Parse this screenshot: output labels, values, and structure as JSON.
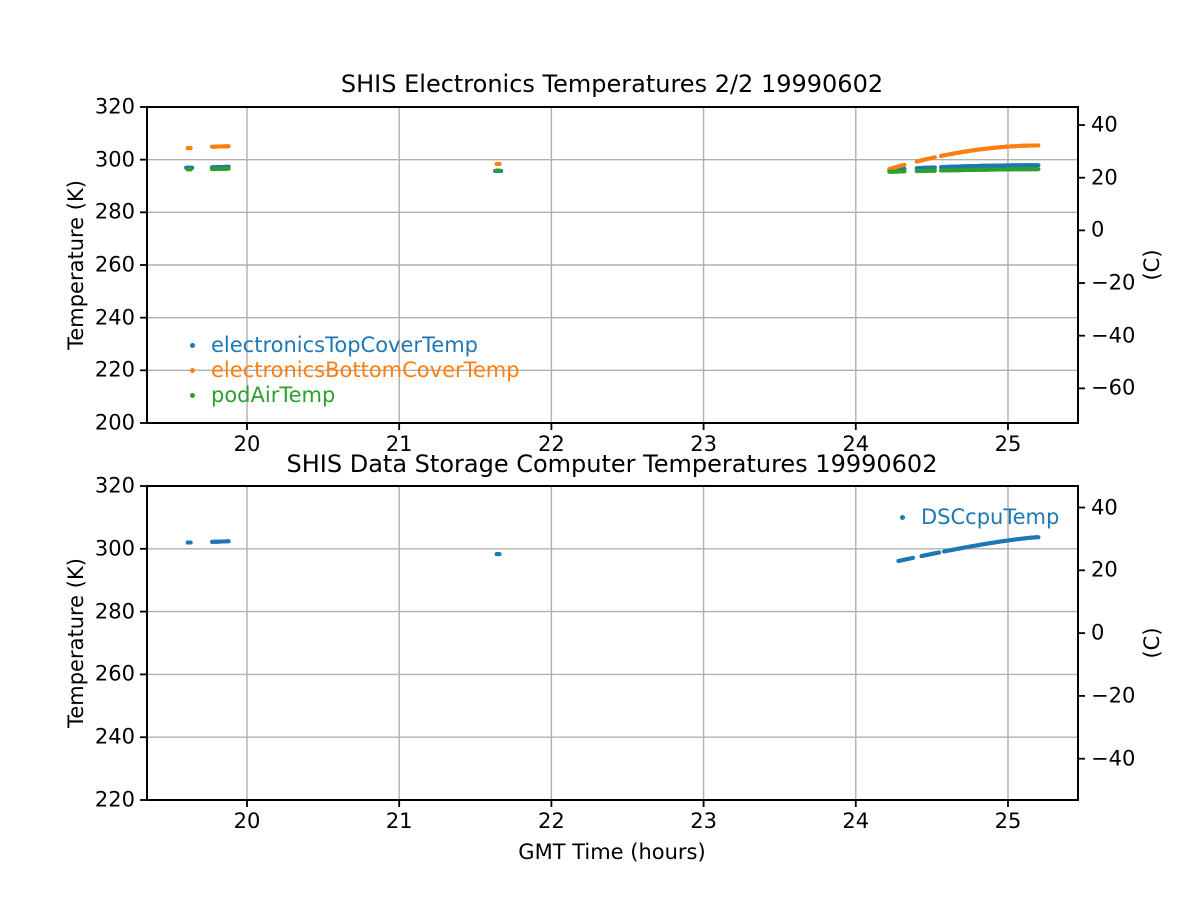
{
  "figure": {
    "background": "#ffffff"
  },
  "colors": {
    "grid": "#b0b0b0",
    "spine": "#000000",
    "text": "#000000"
  },
  "xaxis": {
    "label": "GMT Time (hours)",
    "tick_labels": [
      "20",
      "21",
      "22",
      "23",
      "24",
      "25"
    ],
    "tick_values": [
      20,
      21,
      22,
      23,
      24,
      25
    ],
    "lim": [
      19.343,
      25.46
    ]
  },
  "chart_data": [
    {
      "type": "scatter",
      "title": "SHIS Electronics Temperatures 2/2 19990602",
      "ylabel": "Temperature (K)",
      "y2label": "(C)",
      "xlabel": "",
      "ylim": [
        200,
        320
      ],
      "yticks": [
        200,
        220,
        240,
        260,
        280,
        300,
        320
      ],
      "y2ticks": [
        40,
        20,
        0,
        -20,
        -40,
        -60
      ],
      "y2_to_K_offset": 273.15,
      "grid": true,
      "legend_position": "lower left",
      "series": [
        {
          "name": "electronicsTopCoverTemp",
          "color": "#1f77b4",
          "runs": [
            {
              "x": [
                19.6,
                19.64
              ],
              "y": [
                296.9,
                296.9
              ]
            },
            {
              "x": [
                19.77,
                19.88
              ],
              "y": [
                297.1,
                297.3
              ]
            },
            {
              "x": [
                21.63,
                21.67
              ],
              "y": [
                295.7,
                295.7
              ]
            },
            {
              "x": [
                24.22,
                25.2
              ],
              "y": [
                296.2,
                297.9
              ],
              "p": 2.0,
              "gaps": [
                [
                  24.32,
                  24.4
                ],
                [
                  24.52,
                  24.56
                ]
              ]
            }
          ]
        },
        {
          "name": "electronicsBottomCoverTemp",
          "color": "#ff7f0e",
          "runs": [
            {
              "x": [
                19.61,
                19.63
              ],
              "y": [
                304.4,
                304.4
              ]
            },
            {
              "x": [
                19.77,
                19.88
              ],
              "y": [
                304.9,
                305.1
              ]
            },
            {
              "x": [
                21.64,
                21.66
              ],
              "y": [
                298.4,
                298.4
              ]
            },
            {
              "x": [
                24.22,
                25.2
              ],
              "y": [
                296.4,
                305.4
              ],
              "p": 1.9,
              "gaps": [
                [
                  24.32,
                  24.4
                ],
                [
                  24.52,
                  24.56
                ]
              ]
            }
          ]
        },
        {
          "name": "podAirTemp",
          "color": "#2ca02c",
          "runs": [
            {
              "x": [
                19.61,
                19.63
              ],
              "y": [
                296.3,
                296.3
              ]
            },
            {
              "x": [
                19.77,
                19.88
              ],
              "y": [
                296.4,
                296.6
              ]
            },
            {
              "x": [
                21.64,
                21.66
              ],
              "y": [
                295.9,
                295.9
              ]
            },
            {
              "x": [
                24.22,
                25.2
              ],
              "y": [
                295.4,
                296.4
              ],
              "p": 1.5,
              "gaps": [
                [
                  24.32,
                  24.4
                ],
                [
                  24.52,
                  24.56
                ]
              ]
            }
          ]
        }
      ]
    },
    {
      "type": "scatter",
      "title": "SHIS Data Storage Computer Temperatures 19990602",
      "ylabel": "Temperature (K)",
      "y2label": "(C)",
      "xlabel": "GMT Time (hours)",
      "ylim": [
        220,
        320
      ],
      "yticks": [
        220,
        240,
        260,
        280,
        300,
        320
      ],
      "y2ticks": [
        40,
        20,
        0,
        -20,
        -40
      ],
      "y2_to_K_offset": 273.15,
      "grid": true,
      "legend_position": "upper right",
      "series": [
        {
          "name": "DSCcpuTemp",
          "color": "#1f77b4",
          "runs": [
            {
              "x": [
                19.61,
                19.63
              ],
              "y": [
                302.0,
                302.0
              ]
            },
            {
              "x": [
                19.77,
                19.88
              ],
              "y": [
                302.2,
                302.4
              ]
            },
            {
              "x": [
                21.64,
                21.66
              ],
              "y": [
                298.3,
                298.3
              ]
            },
            {
              "x": [
                24.28,
                25.2
              ],
              "y": [
                296.1,
                303.7
              ],
              "p": 1.3,
              "gaps": [
                [
                  24.38,
                  24.43
                ],
                [
                  24.55,
                  24.58
                ]
              ]
            }
          ]
        }
      ]
    }
  ]
}
